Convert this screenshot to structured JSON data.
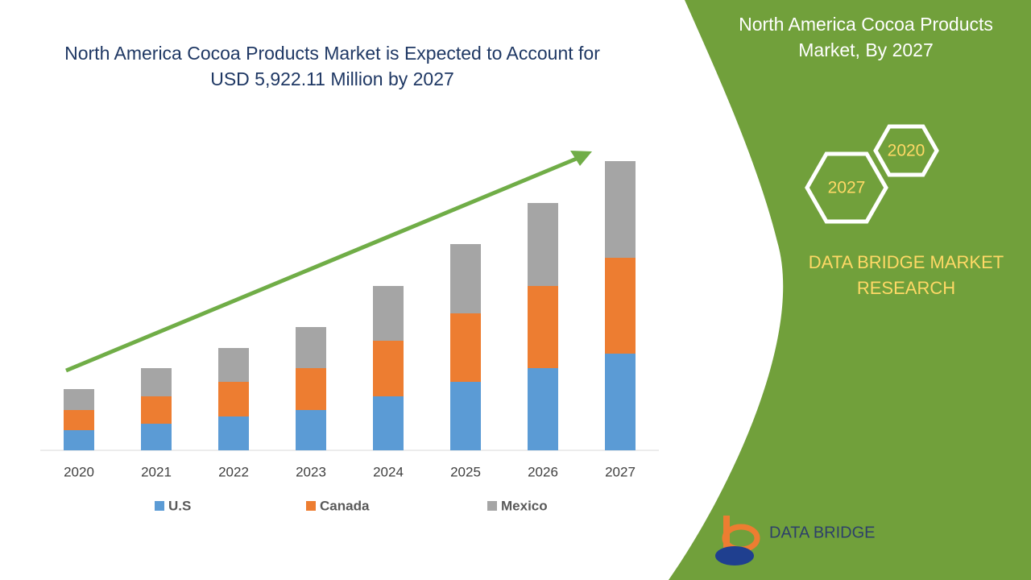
{
  "chart_data": {
    "type": "bar",
    "stacked": true,
    "title": "North America Cocoa Products Market is Expected to Account for USD 5,922.11 Million by 2027",
    "categories": [
      "2020",
      "2021",
      "2022",
      "2023",
      "2024",
      "2025",
      "2026",
      "2027"
    ],
    "series": [
      {
        "name": "U.S",
        "color": "#5b9bd5",
        "values": [
          25,
          33,
          42,
          50,
          67,
          85,
          102,
          120
        ]
      },
      {
        "name": "Canada",
        "color": "#ed7d31",
        "values": [
          25,
          34,
          43,
          52,
          69,
          85,
          102,
          119
        ]
      },
      {
        "name": "Mexico",
        "color": "#a5a5a5",
        "values": [
          26,
          35,
          42,
          51,
          68,
          86,
          103,
          120
        ]
      }
    ]
  },
  "side_panel": {
    "title": "North America Cocoa Products Market, By 2027",
    "hexagons": [
      "2020",
      "2027"
    ],
    "brand": "DATA BRIDGE MARKET RESEARCH",
    "logo_text": "DATA BRIDGE"
  }
}
